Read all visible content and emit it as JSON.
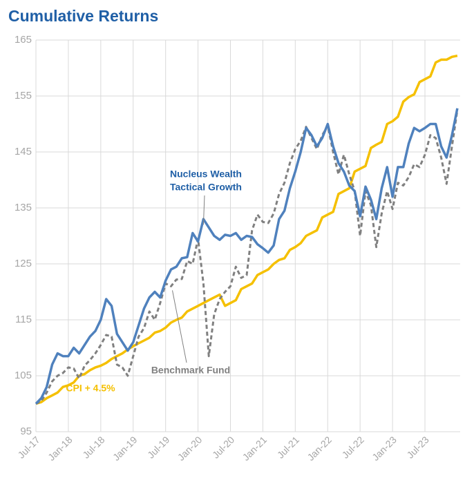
{
  "chart_data": {
    "type": "line",
    "title": "Cumulative Returns",
    "categories": [
      "Jul-17",
      null,
      null,
      null,
      null,
      null,
      "Jan-18",
      null,
      null,
      null,
      null,
      null,
      "Jul-18",
      null,
      null,
      null,
      null,
      null,
      "Jan-19",
      null,
      null,
      null,
      null,
      null,
      "Jul-19",
      null,
      null,
      null,
      null,
      null,
      "Jan-20",
      null,
      null,
      null,
      null,
      null,
      "Jul-20",
      null,
      null,
      null,
      null,
      null,
      "Jan-21",
      null,
      null,
      null,
      null,
      null,
      "Jul-21",
      null,
      null,
      null,
      null,
      null,
      "Jan-22",
      null,
      null,
      null,
      null,
      null,
      "Jul-22",
      null,
      null,
      null,
      null,
      null,
      "Jan-23",
      null,
      null,
      null,
      null,
      null,
      "Jul-23",
      null,
      null,
      null,
      null,
      null,
      null
    ],
    "series": [
      {
        "name": "Nucleus Wealth Tactical Growth",
        "color": "#4f81bd",
        "dash": false,
        "values": [
          100,
          101,
          103,
          107,
          109,
          108.5,
          108.5,
          110,
          109,
          110.5,
          112,
          113,
          115,
          118.7,
          117.5,
          112.5,
          111,
          109.5,
          111,
          114,
          117,
          119,
          120,
          119,
          122,
          124,
          124.5,
          126,
          126.2,
          130.5,
          129,
          133,
          131.5,
          130,
          129.3,
          130.2,
          130,
          130.5,
          129.3,
          130,
          129.8,
          128.5,
          127.8,
          127,
          128.3,
          133,
          134.5,
          138.5,
          141.5,
          145,
          149.3,
          148,
          146,
          147.5,
          150,
          146,
          143,
          141.5,
          139,
          138,
          133.5,
          138.8,
          136.5,
          133,
          138.5,
          142.3,
          137,
          142.3,
          142.3,
          146.5,
          149.3,
          148.7,
          149.3,
          150,
          150,
          146,
          144,
          148,
          152.8
        ]
      },
      {
        "name": "Benchmark Fund",
        "color": "#808080",
        "dash": true,
        "values": [
          100,
          100.5,
          102,
          104,
          105,
          105.5,
          106.5,
          106.3,
          104.5,
          106.8,
          107.8,
          109,
          110.5,
          112.3,
          112,
          107,
          106.5,
          105,
          108.5,
          112,
          113.5,
          116.5,
          115,
          118,
          121.5,
          121,
          122.2,
          122.3,
          125.5,
          125,
          129.5,
          121.5,
          108.5,
          116,
          118.7,
          120,
          121,
          124.5,
          122.5,
          123,
          131,
          133.8,
          132.5,
          132.3,
          134,
          137.5,
          139.5,
          143,
          145.5,
          147,
          149.5,
          147.5,
          145.5,
          148,
          149.7,
          145,
          141,
          144.5,
          141,
          138,
          130,
          138,
          135.5,
          128,
          134,
          138,
          134.8,
          139.5,
          139,
          140.5,
          142.8,
          142.3,
          144.5,
          148,
          147.5,
          144,
          139.3,
          146,
          152.5
        ]
      },
      {
        "name": "CPI + 4.5%",
        "color": "#f5c000",
        "dash": false,
        "values": [
          100,
          100.3,
          101,
          101.5,
          102,
          103,
          103.3,
          103.8,
          105,
          105.3,
          106,
          106.5,
          106.8,
          107.3,
          108,
          108.5,
          109,
          109.7,
          110.3,
          110.8,
          111.3,
          111.8,
          112.7,
          113,
          113.6,
          114.5,
          115,
          115.4,
          116.5,
          117,
          117.5,
          118,
          118.5,
          119,
          119.5,
          117.5,
          118,
          118.5,
          120.5,
          121,
          121.5,
          123,
          123.5,
          124,
          125,
          125.7,
          126,
          127.5,
          128,
          128.7,
          130,
          130.5,
          131,
          133.3,
          133.8,
          134.3,
          137.5,
          138,
          138.5,
          141.5,
          142,
          142.5,
          145.7,
          146.3,
          146.8,
          150,
          150.5,
          151.3,
          154,
          154.8,
          155.3,
          157.5,
          158,
          158.5,
          161,
          161.5,
          161.5,
          162,
          162.2
        ]
      }
    ],
    "annotations": [
      {
        "lines": [
          "Nucleus Wealth",
          "Tactical Growth"
        ],
        "series": 0,
        "point": 31
      },
      {
        "lines": [
          "Benchmark Fund"
        ],
        "series": 1,
        "point": 25
      },
      {
        "lines": [
          "CPI + 4.5%"
        ],
        "series": 2
      }
    ],
    "ylim": [
      95,
      165
    ],
    "yticks": [
      95,
      105,
      115,
      125,
      135,
      145,
      155,
      165
    ],
    "grid": true
  }
}
